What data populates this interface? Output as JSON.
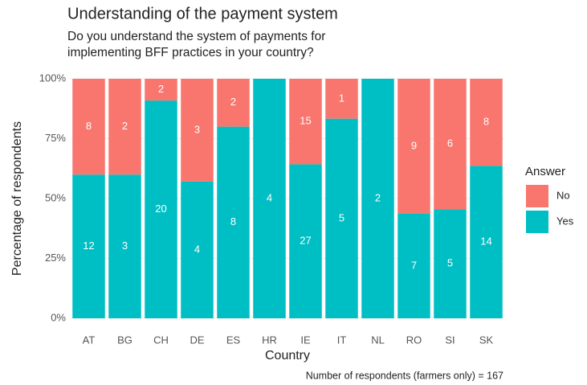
{
  "chart_data": {
    "type": "bar",
    "stacked": true,
    "title": "Understanding of the payment system",
    "subtitle": [
      "Do you understand the system of payments for",
      "implementing BFF practices in your country?"
    ],
    "x_label": "Country",
    "y_label": "Percentage of respondents",
    "caption": "Number of respondents (farmers only) = 167",
    "legend_title": "Answer",
    "legend_position": "right",
    "grid": true,
    "categories": [
      "AT",
      "BG",
      "CH",
      "DE",
      "ES",
      "HR",
      "IE",
      "IT",
      "NL",
      "RO",
      "SI",
      "SK"
    ],
    "series": [
      {
        "name": "No",
        "color": "#F8766D",
        "values": [
          40,
          40,
          9.09,
          42.86,
          20,
          0,
          35.71,
          16.67,
          0,
          56.25,
          54.55,
          36.36
        ],
        "counts": [
          8,
          2,
          2,
          3,
          2,
          null,
          15,
          1,
          null,
          9,
          6,
          8
        ]
      },
      {
        "name": "Yes",
        "color": "#00BFC4",
        "values": [
          60,
          60,
          90.91,
          57.14,
          80,
          100,
          64.29,
          83.33,
          100,
          43.75,
          45.45,
          63.64
        ],
        "counts": [
          12,
          3,
          20,
          4,
          8,
          4,
          27,
          5,
          2,
          7,
          5,
          14
        ]
      }
    ],
    "ylim": [
      0,
      100
    ],
    "yticks": [
      {
        "value": 0,
        "label": "0%"
      },
      {
        "value": 25,
        "label": "25%"
      },
      {
        "value": 50,
        "label": "50%"
      },
      {
        "value": 75,
        "label": "75%"
      },
      {
        "value": 100,
        "label": "100%"
      }
    ]
  }
}
